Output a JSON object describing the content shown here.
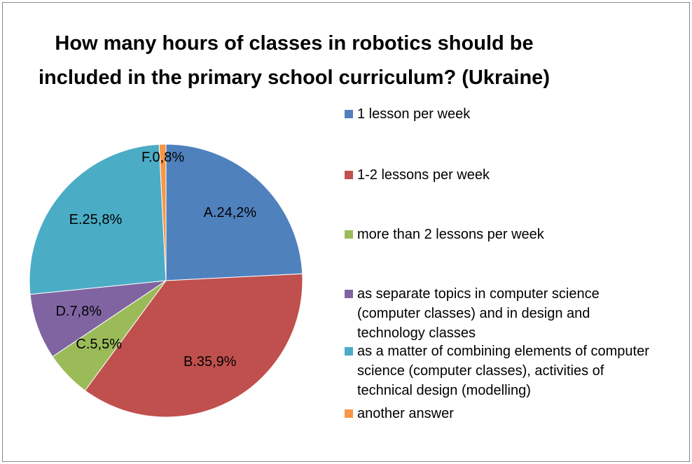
{
  "chart_data": {
    "type": "pie",
    "title": "How many hours of classes in robotics should be included in the primary school curriculum? (Ukraine)",
    "categories": [
      "1 lesson per week",
      "1-2 lessons per week",
      "more than 2 lessons per week",
      "as separate topics in computer science (computer classes) and in design and technology classes",
      "as a matter of combining elements of computer science (computer classes), activities of technical design (modelling)",
      "another answer"
    ],
    "values": [
      24.2,
      35.9,
      5.5,
      7.8,
      25.8,
      0.8
    ],
    "value_labels": [
      "A.24,2%",
      "B.35,9%",
      "C.5,5%",
      "D.7,8%",
      "E.25,8%",
      "F.0,8%"
    ],
    "colors": [
      "#4f81bd",
      "#c0504d",
      "#9bbb59",
      "#8064a2",
      "#4bacc6",
      "#f79646"
    ],
    "legend": "right"
  }
}
